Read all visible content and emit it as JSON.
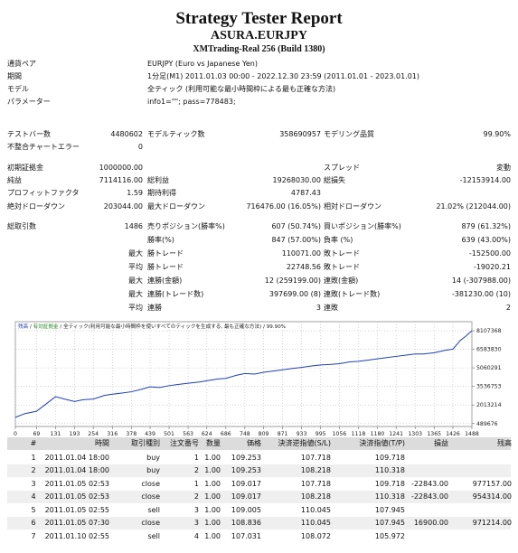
{
  "header": {
    "title": "Strategy Tester Report",
    "subtitle": "ASURA.EURJPY",
    "server": "XMTrading-Real 256 (Build 1380)"
  },
  "general": [
    {
      "label": "通貨ペア",
      "value": "EURJPY (Euro vs Japanese Yen)"
    },
    {
      "label": "期間",
      "value": "1分足(M1) 2011.01.03 00:00 - 2022.12.30 23:59 (2011.01.01 - 2023.01.01)"
    },
    {
      "label": "モデル",
      "value": "全ティック (利用可能な最小時間枠による最も正確な方法)"
    },
    {
      "label": "パラメーター",
      "value": "info1=\"\"; pass=778483;"
    }
  ],
  "summary": [
    [
      [
        "テストバー数",
        "4480602",
        "モデルティック数",
        "358690957",
        "モデリング品質",
        "99.90%"
      ],
      [
        "不整合チャートエラー",
        "0",
        null,
        null,
        null,
        null
      ]
    ],
    [
      [
        "初期証拠金",
        "1000000.00",
        null,
        null,
        "スプレッド",
        "変動"
      ],
      [
        "純益",
        "7114116.00",
        "総利益",
        "19268030.00",
        "総損失",
        "-12153914.00"
      ],
      [
        "プロフィットファクタ",
        "1.59",
        "期待利得",
        "4787.43",
        null,
        null
      ],
      [
        "絶対ドローダウン",
        "203044.00",
        "最大ドローダウン",
        "716476.00 (16.05%)",
        "相対ドローダウン",
        "21.02% (212044.00)"
      ]
    ],
    [
      [
        "総取引数",
        "1486",
        "売りポジション(勝率%)",
        "607 (50.74%)",
        "買いポジション(勝率%)",
        "879 (61.32%)"
      ],
      [
        null,
        null,
        "勝率(%)",
        "847 (57.00%)",
        "負率 (%)",
        "639 (43.00%)"
      ],
      [
        null,
        "最大",
        "勝トレード",
        "110071.00",
        "敗トレード",
        "-152500.00"
      ],
      [
        null,
        "平均",
        "勝トレード",
        "22748.56",
        "敗トレード",
        "-19020.21"
      ],
      [
        null,
        "最大",
        "連勝(金額)",
        "12 (259199.00)",
        "連敗(金額)",
        "14 (-307988.00)"
      ],
      [
        null,
        "最大",
        "連勝(トレード数)",
        "397699.00 (8)",
        "連敗(トレード数)",
        "-381230.00 (10)"
      ],
      [
        null,
        "平均",
        "連勝",
        "3",
        "連敗",
        "2"
      ]
    ]
  ],
  "chart_data": {
    "type": "line",
    "equity_label": "有効証拠金",
    "equity_color": "#2a8a2a",
    "model_label": "全ティック(利用可能な最小時間枠を使いすべてのティックを生成する, 最も正確な方法)",
    "quality": "99.90%",
    "series": [
      {
        "name": "残高",
        "color": "#1f3fb0",
        "x": [
          0,
          30,
          69,
          100,
          131,
          160,
          193,
          220,
          254,
          290,
          316,
          350,
          378,
          410,
          439,
          470,
          501,
          530,
          563,
          600,
          624,
          660,
          686,
          720,
          748,
          780,
          809,
          840,
          871,
          900,
          933,
          960,
          995,
          1030,
          1056,
          1090,
          1118,
          1150,
          1180,
          1210,
          1241,
          1270,
          1303,
          1330,
          1365,
          1400,
          1426,
          1450,
          1470,
          1488
        ],
        "values": [
          1000000,
          1300000,
          1500000,
          2100000,
          2700000,
          2500000,
          2300000,
          2450000,
          2500000,
          2800000,
          2900000,
          3000000,
          3100000,
          3300000,
          3500000,
          3450000,
          3600000,
          3700000,
          3800000,
          3900000,
          4000000,
          4150000,
          4200000,
          4450000,
          4600000,
          4550000,
          4700000,
          4800000,
          4900000,
          5000000,
          5100000,
          5200000,
          5300000,
          5350000,
          5400000,
          5550000,
          5600000,
          5700000,
          5800000,
          5900000,
          6000000,
          6100000,
          6200000,
          6200000,
          6300000,
          6500000,
          6600000,
          7300000,
          7700000,
          8114116
        ]
      }
    ],
    "xlim": [
      0,
      1488
    ],
    "xticks": [
      0,
      69,
      131,
      193,
      254,
      316,
      378,
      439,
      501,
      563,
      624,
      686,
      748,
      809,
      871,
      933,
      995,
      1056,
      1118,
      1180,
      1241,
      1303,
      1365,
      1426,
      1488
    ],
    "ylim": [
      250000,
      8850000
    ],
    "yticks": [
      8107368,
      6583830,
      5060291,
      3536753,
      2013214,
      489676
    ],
    "grid": true
  },
  "table": {
    "columns": [
      "#",
      "時間",
      "取引種別",
      "注文番号",
      "数量",
      "価格",
      "決済逆指値(S/L)",
      "決済指値(T/P)",
      "損益",
      "残高"
    ],
    "rows": [
      [
        "1",
        "2011.01.04 18:00",
        "buy",
        "1",
        "1.00",
        "109.253",
        "107.718",
        "109.718",
        null,
        null
      ],
      [
        "2",
        "2011.01.04 18:00",
        "buy",
        "2",
        "1.00",
        "109.253",
        "108.218",
        "110.318",
        null,
        null
      ],
      [
        "3",
        "2011.01.05 02:53",
        "close",
        "1",
        "1.00",
        "109.017",
        "107.718",
        "109.718",
        "-22843.00",
        "977157.00"
      ],
      [
        "4",
        "2011.01.05 02:53",
        "close",
        "2",
        "1.00",
        "109.017",
        "108.218",
        "110.318",
        "-22843.00",
        "954314.00"
      ],
      [
        "5",
        "2011.01.05 02:55",
        "sell",
        "3",
        "1.00",
        "109.005",
        "110.045",
        "107.945",
        null,
        null
      ],
      [
        "6",
        "2011.01.05 07:30",
        "close",
        "3",
        "1.00",
        "108.836",
        "110.045",
        "107.945",
        "16900.00",
        "971214.00"
      ],
      [
        "7",
        "2011.01.10 02:55",
        "sell",
        "4",
        "1.00",
        "107.031",
        "108.072",
        "105.972",
        null,
        null
      ]
    ]
  }
}
